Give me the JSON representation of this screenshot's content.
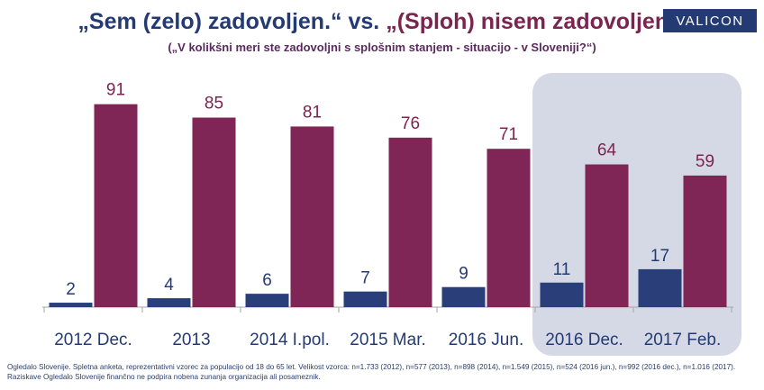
{
  "header": {
    "title_part1": "„Sem (zelo) zadovoljen.“",
    "title_vs": " vs. ",
    "title_part2": "„(Sploh) nisem zadovoljen.“",
    "subtitle": "(„V kolikšni meri ste zadovoljni s splošnim stanjem - situacijo - v Sloveniji?“)",
    "logo": "VALICON"
  },
  "colors": {
    "satisfied": "#2a3f7a",
    "dissatisfied": "#7f2656",
    "highlight": "#d5d9e6",
    "axis": "#a6a6a6",
    "label_satisfied": "#243a73",
    "label_dissatisfied": "#7b2450"
  },
  "chart_data": {
    "type": "bar",
    "categories": [
      "2012 Dec.",
      "2013",
      "2014 I.pol.",
      "2015 Mar.",
      "2016 Jun.",
      "2016 Dec.",
      "2017 Feb."
    ],
    "series": [
      {
        "values": [
          2,
          4,
          6,
          7,
          9,
          11,
          17
        ]
      },
      {
        "values": [
          91,
          85,
          81,
          76,
          71,
          64,
          59
        ]
      }
    ],
    "highlighted_categories": [
      "2016 Dec.",
      "2017 Feb."
    ],
    "ylim": [
      0,
      100
    ],
    "grid": false
  },
  "footnote": "Ogledalo Slovenije. Spletna anketa, reprezentativni vzorec za populacijo od 18 do 65 let. Velikost vzorca: n=1.733 (2012), n=577 (2013), n=898 (2014), n=1.549 (2015), n=524 (2016 jun.), n=992 (2016 dec.), n=1.016 (2017). Raziskave Ogledalo Slovenije finančno ne podpira nobena zunanja organizacija ali posameznik."
}
